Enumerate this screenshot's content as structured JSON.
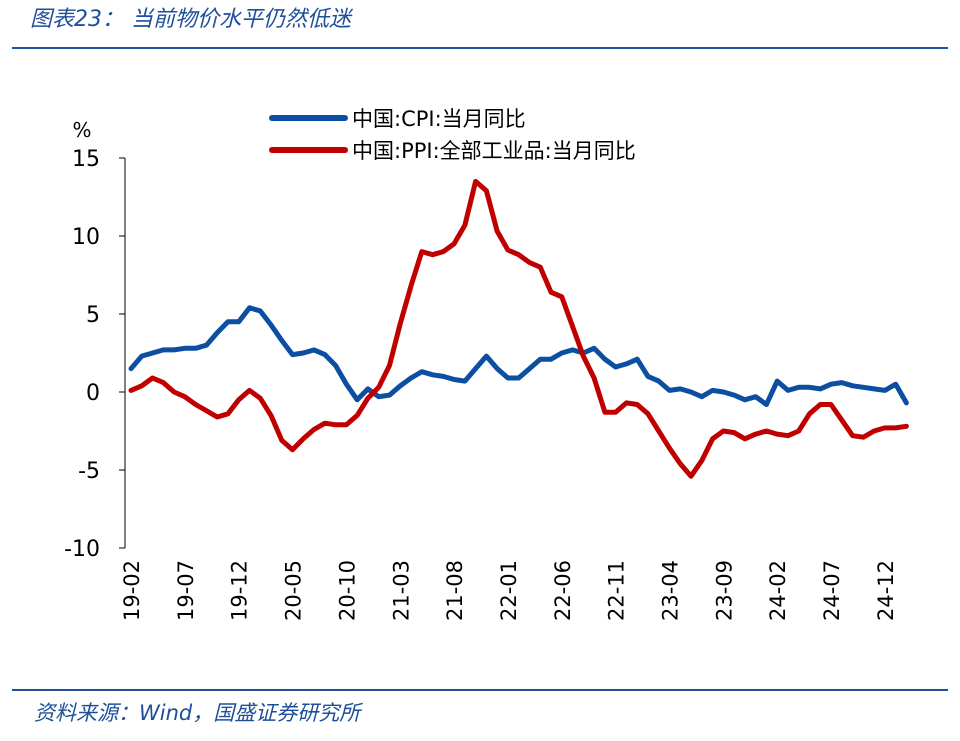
{
  "chart_data": {
    "type": "line",
    "title": "图表23：  当前物价水平仍然低迷",
    "source": "资料来源：Wind，国盛证券研究所",
    "y_unit": "%",
    "categories": [
      "19-02",
      null,
      null,
      null,
      null,
      "19-07",
      null,
      null,
      null,
      null,
      "19-12",
      null,
      null,
      null,
      null,
      "20-05",
      null,
      null,
      null,
      null,
      "20-10",
      null,
      null,
      null,
      null,
      "21-03",
      null,
      null,
      null,
      null,
      "21-08",
      null,
      null,
      null,
      null,
      "22-01",
      null,
      null,
      null,
      null,
      "22-06",
      null,
      null,
      null,
      null,
      "22-11",
      null,
      null,
      null,
      null,
      "23-04",
      null,
      null,
      null,
      null,
      "23-09",
      null,
      null,
      null,
      null,
      "24-02",
      null,
      null,
      null,
      null,
      "24-07",
      null,
      null,
      null,
      null,
      "24-12",
      null,
      null
    ],
    "series": [
      {
        "name": "中国:CPI:当月同比",
        "color": "#0b4ea2",
        "values": [
          1.5,
          2.3,
          2.5,
          2.7,
          2.7,
          2.8,
          2.8,
          3.0,
          3.8,
          4.5,
          4.5,
          5.4,
          5.2,
          4.3,
          3.3,
          2.4,
          2.5,
          2.7,
          2.4,
          1.7,
          0.5,
          -0.5,
          0.2,
          -0.3,
          -0.2,
          0.4,
          0.9,
          1.3,
          1.1,
          1.0,
          0.8,
          0.7,
          1.5,
          2.3,
          1.5,
          0.9,
          0.9,
          1.5,
          2.1,
          2.1,
          2.5,
          2.7,
          2.5,
          2.8,
          2.1,
          1.6,
          1.8,
          2.1,
          1.0,
          0.7,
          0.1,
          0.2,
          0.0,
          -0.3,
          0.1,
          0.0,
          -0.2,
          -0.5,
          -0.3,
          -0.8,
          0.7,
          0.1,
          0.3,
          0.3,
          0.2,
          0.5,
          0.6,
          0.4,
          0.3,
          0.2,
          0.1,
          0.5,
          -0.7
        ]
      },
      {
        "name": "中国:PPI:全部工业品:当月同比",
        "color": "#c00000",
        "values": [
          0.1,
          0.4,
          0.9,
          0.6,
          0.0,
          -0.3,
          -0.8,
          -1.2,
          -1.6,
          -1.4,
          -0.5,
          0.1,
          -0.4,
          -1.5,
          -3.1,
          -3.7,
          -3.0,
          -2.4,
          -2.0,
          -2.1,
          -2.1,
          -1.5,
          -0.4,
          0.3,
          1.7,
          4.4,
          6.8,
          9.0,
          8.8,
          9.0,
          9.5,
          10.7,
          13.5,
          12.9,
          10.3,
          9.1,
          8.8,
          8.3,
          8.0,
          6.4,
          6.1,
          4.2,
          2.3,
          0.9,
          -1.3,
          -1.3,
          -0.7,
          -0.8,
          -1.4,
          -2.5,
          -3.6,
          -4.6,
          -5.4,
          -4.4,
          -3.0,
          -2.5,
          -2.6,
          -3.0,
          -2.7,
          -2.5,
          -2.7,
          -2.8,
          -2.5,
          -1.4,
          -0.8,
          -0.8,
          -1.8,
          -2.8,
          -2.9,
          -2.5,
          -2.3,
          -2.3,
          -2.2
        ]
      }
    ],
    "ylim": [
      -10,
      15
    ],
    "yticks": [
      -10,
      -5,
      0,
      5,
      10,
      15
    ]
  }
}
